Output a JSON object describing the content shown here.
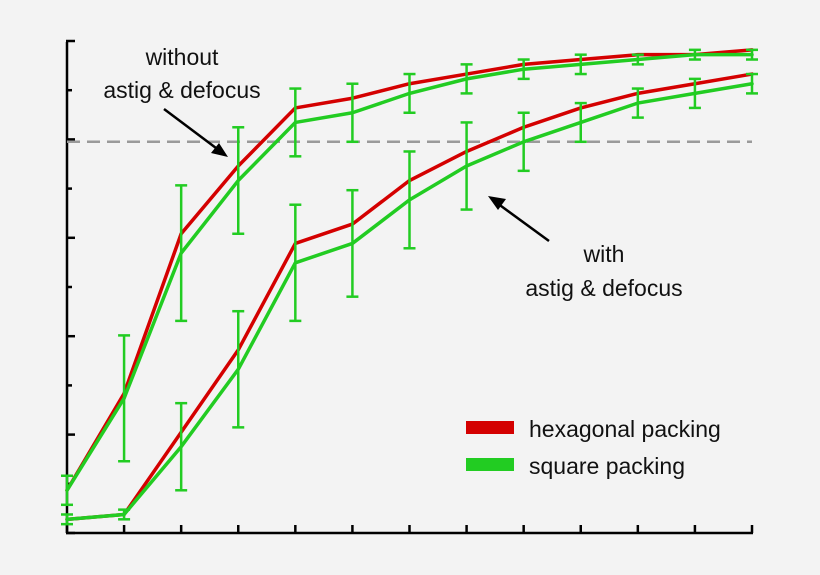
{
  "chart_data": {
    "type": "line",
    "x": [
      0,
      1,
      2,
      3,
      4,
      5,
      6,
      7,
      8,
      9,
      10,
      11,
      12
    ],
    "xlim": [
      0,
      12
    ],
    "ylim": [
      0,
      1
    ],
    "grid": false,
    "legend_position": "lower-right",
    "reference_line": {
      "y": 0.8,
      "style": "dashed",
      "color": "#9a9a9a"
    },
    "series": [
      {
        "name": "hexagonal packing",
        "group": "without",
        "color": "#d40000",
        "values": [
          0.08,
          0.28,
          0.61,
          0.75,
          0.87,
          0.89,
          0.92,
          0.94,
          0.96,
          0.97,
          0.98,
          0.98,
          0.99
        ]
      },
      {
        "name": "square packing",
        "group": "without",
        "color": "#22cc22",
        "values": [
          0.08,
          0.27,
          0.57,
          0.72,
          0.84,
          0.86,
          0.9,
          0.93,
          0.95,
          0.96,
          0.97,
          0.98,
          0.98
        ],
        "errors": [
          0.03,
          0.13,
          0.14,
          0.11,
          0.07,
          0.06,
          0.04,
          0.03,
          0.02,
          0.02,
          0.01,
          0.01,
          0.01
        ]
      },
      {
        "name": "hexagonal packing",
        "group": "with",
        "color": "#d40000",
        "values": [
          0.02,
          0.03,
          0.2,
          0.37,
          0.59,
          0.63,
          0.72,
          0.78,
          0.83,
          0.87,
          0.9,
          0.92,
          0.94
        ]
      },
      {
        "name": "square packing",
        "group": "with",
        "color": "#22cc22",
        "values": [
          0.02,
          0.03,
          0.17,
          0.33,
          0.55,
          0.59,
          0.68,
          0.75,
          0.8,
          0.84,
          0.88,
          0.9,
          0.92
        ],
        "errors": [
          0.01,
          0.01,
          0.09,
          0.12,
          0.12,
          0.11,
          0.1,
          0.09,
          0.06,
          0.04,
          0.03,
          0.03,
          0.02
        ]
      }
    ],
    "legend": [
      {
        "label": "hexagonal packing",
        "color": "#d40000"
      },
      {
        "label": "square packing",
        "color": "#22cc22"
      }
    ],
    "annotations": {
      "without": {
        "line1": "without",
        "line2": "astig & defocus"
      },
      "with": {
        "line1": "with",
        "line2": "astig & defocus"
      }
    }
  }
}
